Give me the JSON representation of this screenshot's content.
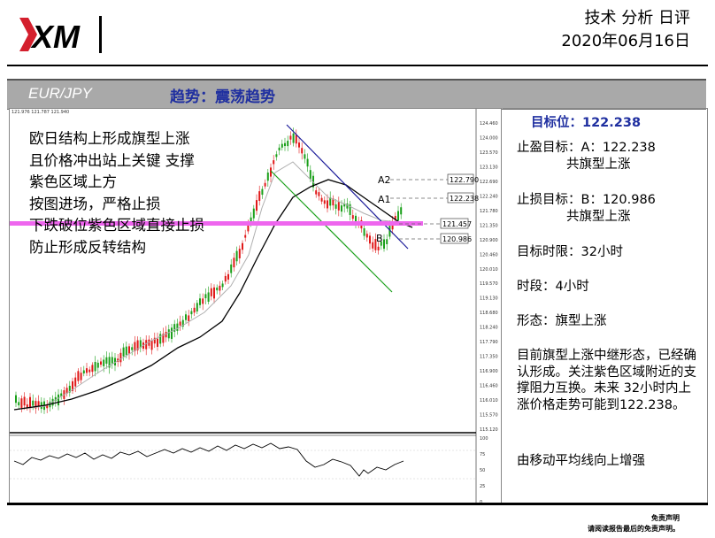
{
  "header": {
    "logo_text": "XM",
    "title_line1": "技术 分析 日评",
    "title_line2": "2020年06月16日"
  },
  "bar": {
    "pair": "EUR/JPY",
    "trend": "趋势：震荡趋势"
  },
  "chart": {
    "top_info": "121.976 121.787 121.940",
    "annotations": {
      "a2": "A2",
      "a1": "A1",
      "b": "B",
      "label_a2": "122.790",
      "label_a1": "122.238",
      "label_support": "121.457",
      "label_b": "120.986"
    },
    "price_axis": [
      "124.460",
      "124.000",
      "123.570",
      "123.130",
      "122.690",
      "122.240",
      "121.780",
      "121.350",
      "120.900",
      "120.460",
      "120.010",
      "119.570",
      "119.130",
      "118.680",
      "118.240",
      "117.790",
      "117.350",
      "116.900",
      "116.460",
      "116.010",
      "115.570",
      "115.120"
    ],
    "osc_axis": [
      "100",
      "75",
      "50",
      "25",
      "0"
    ],
    "note_lines": [
      "欧日结构上形成旗型上涨",
      "且价格冲出站上关键 支撑",
      "紫色区域上方",
      "按图进场，严格止损",
      "下跌破位紫色区域直接止损",
      "防止形成反转结构"
    ],
    "colors": {
      "up": "#1aa01a",
      "down": "#e01818",
      "support": "#ee66ee",
      "channel_upper": "#1c1c9a",
      "channel_lower": "#1aa01a"
    }
  },
  "panel": {
    "target": "目标位：122.238",
    "take_profit_label": "止盈目标：A：122.238",
    "take_profit_sub": "共旗型上涨",
    "stop_loss_label": "止损目标：B：120.986",
    "stop_loss_sub": "共旗型上涨",
    "time_limit": "目标时限：32小时",
    "period": "时段：4小时",
    "pattern": "形态：旗型上涨",
    "description": "目前旗型上涨中继形态，已经确认形成。关注紫色区域附近的支撑阻力互换。未来 32小时内上涨价格走势可能到122.238。",
    "ma_note": "由移动平均线向上增强"
  },
  "disclaimer": {
    "line1": "免责声明",
    "line2": "请阅读报告最后的免责声明。"
  }
}
